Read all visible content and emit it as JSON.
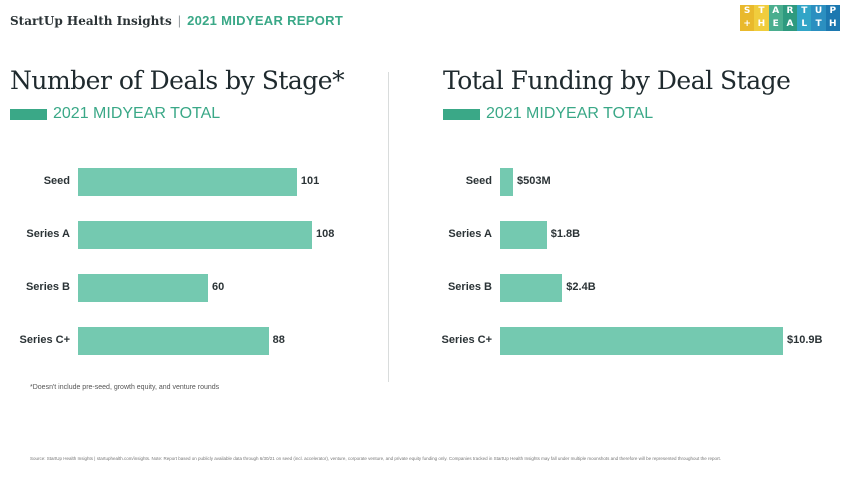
{
  "header": {
    "brand": "StartUp Health Insights",
    "separator": "|",
    "report": "2021 MIDYEAR REPORT"
  },
  "logo": {
    "line1": [
      "S",
      "T",
      "A",
      "R",
      "T",
      "U",
      "P"
    ],
    "line2": [
      "+",
      "H",
      "E",
      "A",
      "L",
      "T",
      "H"
    ],
    "colors": [
      "#e9b92c",
      "#f0cd3d",
      "#4bae8f",
      "#2e9a7f",
      "#31a5c7",
      "#2b8fc0",
      "#1c78b0"
    ]
  },
  "colors": {
    "accent": "#3aa887",
    "bar": "#74c9b0"
  },
  "chart_data": [
    {
      "type": "bar",
      "orientation": "horizontal",
      "title": "Number of Deals by Stage*",
      "legend": [
        "2021 MIDYEAR TOTAL"
      ],
      "categories": [
        "Seed",
        "Series A",
        "Series B",
        "Series C+"
      ],
      "values": [
        101,
        108,
        60,
        88
      ],
      "labels": [
        "101",
        "108",
        "60",
        "88"
      ],
      "xlim": [
        0,
        108
      ]
    },
    {
      "type": "bar",
      "orientation": "horizontal",
      "title": "Total Funding by Deal Stage",
      "legend": [
        "2021 MIDYEAR TOTAL"
      ],
      "categories": [
        "Seed",
        "Series A",
        "Series B",
        "Series C+"
      ],
      "values": [
        0.503,
        1.8,
        2.4,
        10.9
      ],
      "labels": [
        "$503M",
        "$1.8B",
        "$2.4B",
        "$10.9B"
      ],
      "units": "$B",
      "xlim": [
        0,
        10.9
      ]
    }
  ],
  "footnote": "*Doesn't include pre-seed, growth equity, and venture rounds",
  "source": "Source: StartUp Health Insights | startuphealth.com/insights. Note: Report based on publicly available data through 6/30/21 on seed (incl. accelerator), venture, corporate venture, and private equity funding only. Companies tracked in StartUp Health Insights may fall under multiple moonshots and therefore will be represented throughout the report."
}
